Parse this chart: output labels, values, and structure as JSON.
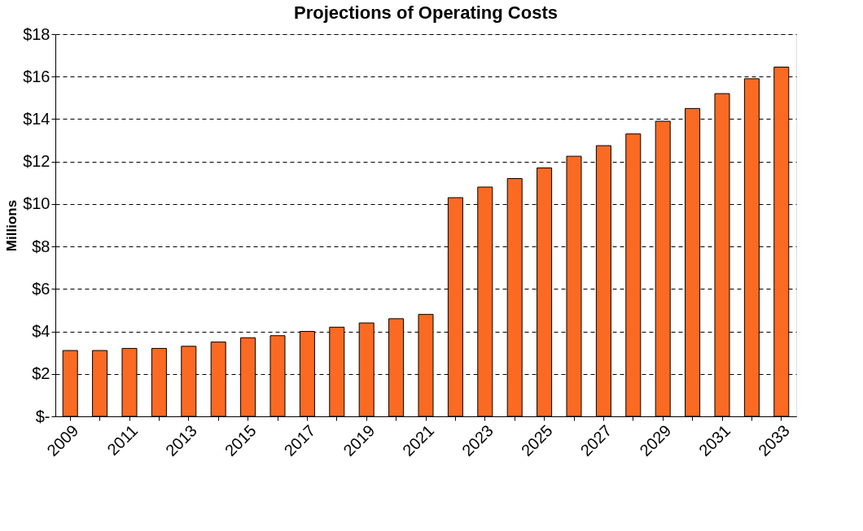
{
  "chart_data": {
    "type": "bar",
    "title": "Projections of Operating Costs",
    "ylabel": "Millions",
    "categories": [
      "2009",
      null,
      "2011",
      null,
      "2013",
      null,
      "2015",
      null,
      "2017",
      null,
      "2019",
      null,
      "2021",
      null,
      "2023",
      null,
      "2025",
      null,
      "2027",
      null,
      "2029",
      null,
      "2031",
      null,
      "2033"
    ],
    "values": [
      3.1,
      3.1,
      3.2,
      3.2,
      3.3,
      3.5,
      3.7,
      3.8,
      4.0,
      4.2,
      4.4,
      4.6,
      4.8,
      10.3,
      10.8,
      11.2,
      11.7,
      12.25,
      12.75,
      13.3,
      13.9,
      14.5,
      15.2,
      15.9,
      16.45
    ],
    "color": "#fb6a22",
    "ylim": [
      0,
      18
    ],
    "yticks": [
      {
        "value": 0,
        "label": "$-"
      },
      {
        "value": 2,
        "label": "$2"
      },
      {
        "value": 4,
        "label": "$4"
      },
      {
        "value": 6,
        "label": "$6"
      },
      {
        "value": 8,
        "label": "$8"
      },
      {
        "value": 10,
        "label": "$10"
      },
      {
        "value": 12,
        "label": "$12"
      },
      {
        "value": 14,
        "label": "$14"
      },
      {
        "value": 16,
        "label": "$16"
      },
      {
        "value": 18,
        "label": "$18"
      }
    ],
    "grid": "y"
  }
}
